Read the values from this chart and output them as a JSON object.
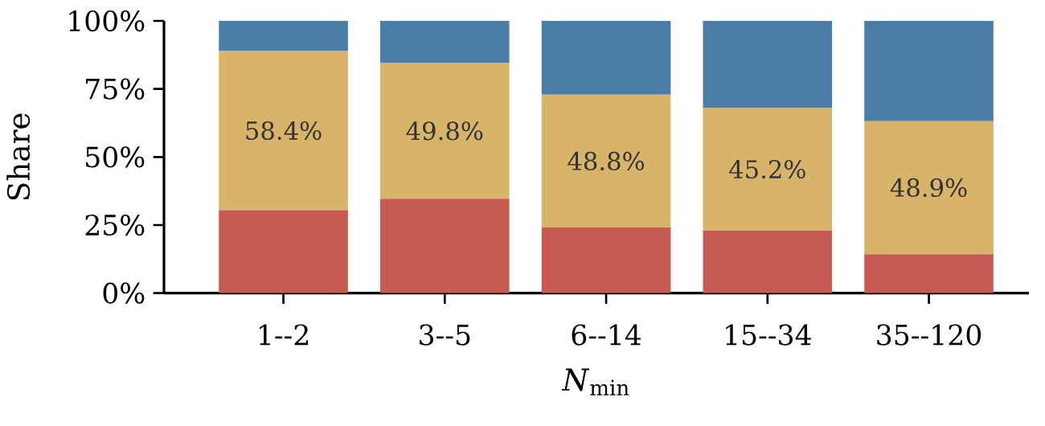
{
  "chart_data": {
    "type": "bar",
    "stacked": true,
    "xlabel": "*N*$_{min}$",
    "ylabel": "Share",
    "categories": [
      "1--2",
      "3--5",
      "6--14",
      "15--34",
      "35--120"
    ],
    "series": [
      {
        "color": "#c75b53",
        "values": [
          30.5,
          34.7,
          24.1,
          22.9,
          14.3
        ]
      },
      {
        "color": "#d8b46a",
        "values": [
          58.4,
          49.8,
          48.8,
          45.2,
          48.9
        ],
        "value_labels": [
          "58.4%",
          "49.8%",
          "48.8%",
          "45.2%",
          "48.9%"
        ]
      },
      {
        "color": "#4a7ea8",
        "values": [
          11.1,
          15.5,
          27.1,
          31.9,
          36.8
        ]
      }
    ],
    "ylim": [
      0,
      100
    ],
    "yticks": [
      {
        "value": 0,
        "label": "0%"
      },
      {
        "value": 25,
        "label": "25%"
      },
      {
        "value": 50,
        "label": "50%"
      },
      {
        "value": 75,
        "label": "75%"
      },
      {
        "value": 100,
        "label": "100%"
      }
    ]
  }
}
